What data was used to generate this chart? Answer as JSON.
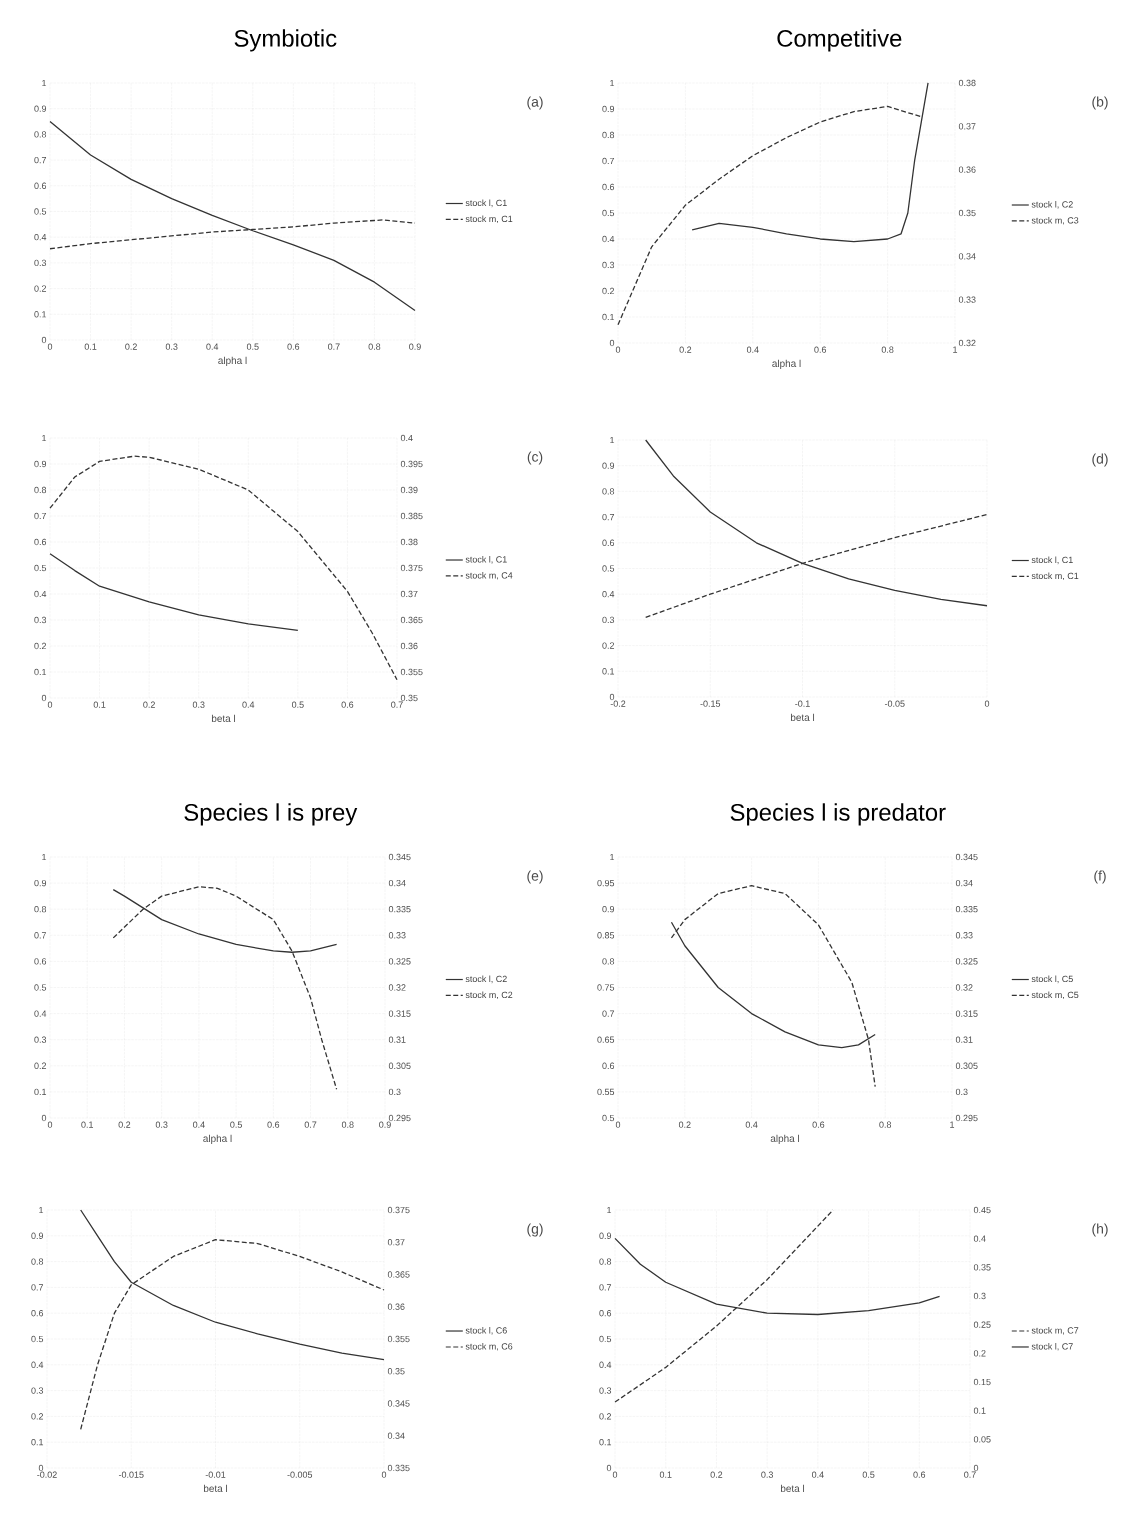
{
  "chart_data": [
    {
      "type": "line",
      "title": "Symbiotic",
      "xlabel": "alpha l",
      "annotations": [
        "(a)"
      ],
      "xlim": [
        0,
        0.9
      ],
      "xticks": [
        0,
        0.1,
        0.2,
        0.3,
        0.4,
        0.5,
        0.6,
        0.7,
        0.8,
        0.9
      ],
      "ylim": [
        0,
        1
      ],
      "yticks": [
        0,
        0.1,
        0.2,
        0.3,
        0.4,
        0.5,
        0.6,
        0.7,
        0.8,
        0.9,
        1
      ],
      "grid": true,
      "legend": "right",
      "series": [
        {
          "name": "stock l, C1",
          "color": "#333333",
          "line_style": "solid",
          "x": [
            0,
            0.1,
            0.2,
            0.3,
            0.4,
            0.5,
            0.6,
            0.7,
            0.8,
            0.9
          ],
          "values": [
            0.85,
            0.72,
            0.625,
            0.55,
            0.485,
            0.425,
            0.37,
            0.31,
            0.225,
            0.115
          ]
        },
        {
          "name": "stock m, C1",
          "color": "#333333",
          "line_style": "dashed",
          "x": [
            0,
            0.1,
            0.2,
            0.3,
            0.4,
            0.5,
            0.6,
            0.7,
            0.8,
            0.82,
            0.9
          ],
          "values": [
            0.355,
            0.375,
            0.39,
            0.405,
            0.42,
            0.43,
            0.44,
            0.455,
            0.465,
            0.467,
            0.455
          ]
        }
      ]
    },
    {
      "type": "line",
      "title": "Competitive",
      "xlabel": "alpha l",
      "annotations": [
        "(b)"
      ],
      "xlim": [
        0,
        1
      ],
      "xticks": [
        0,
        0.2,
        0.4,
        0.6,
        0.8,
        1
      ],
      "ylim": [
        0,
        1
      ],
      "yticks": [
        0,
        0.1,
        0.2,
        0.3,
        0.4,
        0.5,
        0.6,
        0.7,
        0.8,
        0.9,
        1
      ],
      "y2lim": [
        0.32,
        0.38
      ],
      "y2ticks": [
        0.32,
        0.33,
        0.34,
        0.35,
        0.36,
        0.37,
        0.38
      ],
      "grid": true,
      "legend": "right",
      "series": [
        {
          "name": "stock l, C2",
          "color": "#333333",
          "line_style": "solid",
          "x": [
            0.22,
            0.3,
            0.4,
            0.5,
            0.6,
            0.7,
            0.8,
            0.84,
            0.86,
            0.88,
            0.9,
            0.92
          ],
          "values": [
            0.435,
            0.46,
            0.445,
            0.42,
            0.4,
            0.39,
            0.4,
            0.42,
            0.5,
            0.7,
            0.85,
            1.0
          ]
        },
        {
          "name": "stock m, C3",
          "color": "#333333",
          "line_style": "dashed",
          "axis": "y2",
          "x": [
            0,
            0.05,
            0.1,
            0.2,
            0.3,
            0.4,
            0.5,
            0.6,
            0.7,
            0.8,
            0.9
          ],
          "values": [
            0.3242,
            0.3332,
            0.3422,
            0.3518,
            0.3578,
            0.3632,
            0.3674,
            0.371,
            0.3734,
            0.3746,
            0.3722
          ]
        }
      ]
    },
    {
      "type": "line",
      "xlabel": "beta l",
      "annotations": [
        "(c)"
      ],
      "xlim": [
        0,
        0.7
      ],
      "xticks": [
        0,
        0.1,
        0.2,
        0.3,
        0.4,
        0.5,
        0.6,
        0.7
      ],
      "ylim": [
        0,
        1
      ],
      "yticks": [
        0,
        0.1,
        0.2,
        0.3,
        0.4,
        0.5,
        0.6,
        0.7,
        0.8,
        0.9,
        1
      ],
      "y2lim": [
        0.35,
        0.4
      ],
      "y2ticks": [
        0.35,
        0.355,
        0.36,
        0.365,
        0.37,
        0.375,
        0.38,
        0.385,
        0.39,
        0.395,
        0.4
      ],
      "grid": true,
      "legend": "right",
      "series": [
        {
          "name": "stock l, C1",
          "color": "#333333",
          "line_style": "solid",
          "x": [
            0,
            0.05,
            0.1,
            0.2,
            0.3,
            0.4,
            0.5
          ],
          "values": [
            0.555,
            0.49,
            0.43,
            0.37,
            0.32,
            0.285,
            0.26
          ]
        },
        {
          "name": "stock m, C4",
          "color": "#333333",
          "line_style": "dashed",
          "axis": "y2",
          "x": [
            0,
            0.05,
            0.1,
            0.17,
            0.2,
            0.3,
            0.4,
            0.5,
            0.6,
            0.65,
            0.7
          ],
          "values": [
            0.3865,
            0.3925,
            0.3955,
            0.3965,
            0.3963,
            0.394,
            0.39,
            0.382,
            0.3705,
            0.3625,
            0.3535
          ]
        }
      ]
    },
    {
      "type": "line",
      "xlabel": "beta l",
      "annotations": [
        "(d)"
      ],
      "xlim": [
        -0.2,
        0
      ],
      "xticks": [
        -0.2,
        -0.15,
        -0.1,
        -0.05,
        0
      ],
      "ylim": [
        0,
        1
      ],
      "yticks": [
        0,
        0.1,
        0.2,
        0.3,
        0.4,
        0.5,
        0.6,
        0.7,
        0.8,
        0.9,
        1
      ],
      "grid": true,
      "legend": "right",
      "series": [
        {
          "name": "stock l, C1",
          "color": "#333333",
          "line_style": "solid",
          "x": [
            -0.185,
            -0.17,
            -0.15,
            -0.125,
            -0.1,
            -0.075,
            -0.05,
            -0.025,
            0
          ],
          "values": [
            1.0,
            0.86,
            0.72,
            0.6,
            0.52,
            0.46,
            0.415,
            0.38,
            0.355
          ]
        },
        {
          "name": "stock m, C1",
          "color": "#333333",
          "line_style": "dashed",
          "x": [
            -0.185,
            -0.15,
            -0.1,
            -0.05,
            0
          ],
          "values": [
            0.31,
            0.4,
            0.52,
            0.62,
            0.71
          ]
        }
      ]
    },
    {
      "type": "line",
      "title": "Species l is prey",
      "xlabel": "alpha l",
      "annotations": [
        "(e)"
      ],
      "xlim": [
        0,
        0.9
      ],
      "xticks": [
        0,
        0.1,
        0.2,
        0.3,
        0.4,
        0.5,
        0.6,
        0.7,
        0.8,
        0.9
      ],
      "ylim": [
        0,
        1
      ],
      "yticks": [
        0,
        0.1,
        0.2,
        0.3,
        0.4,
        0.5,
        0.6,
        0.7,
        0.8,
        0.9,
        1
      ],
      "y2lim": [
        0.295,
        0.345
      ],
      "y2ticks": [
        0.295,
        0.3,
        0.305,
        0.31,
        0.315,
        0.32,
        0.325,
        0.33,
        0.335,
        0.34,
        0.345
      ],
      "grid": true,
      "legend": "right",
      "series": [
        {
          "name": "stock l, C2",
          "color": "#333333",
          "line_style": "solid",
          "x": [
            0.17,
            0.2,
            0.3,
            0.4,
            0.5,
            0.6,
            0.65,
            0.7,
            0.77
          ],
          "values": [
            0.875,
            0.85,
            0.76,
            0.705,
            0.665,
            0.64,
            0.635,
            0.64,
            0.665
          ]
        },
        {
          "name": "stock m, C2",
          "color": "#333333",
          "line_style": "dashed",
          "axis": "y2",
          "x": [
            0.17,
            0.25,
            0.3,
            0.4,
            0.45,
            0.5,
            0.6,
            0.65,
            0.7,
            0.73,
            0.77
          ],
          "values": [
            0.3295,
            0.335,
            0.3375,
            0.3393,
            0.339,
            0.3375,
            0.333,
            0.327,
            0.318,
            0.31,
            0.3005
          ]
        }
      ]
    },
    {
      "type": "line",
      "title": "Species l is predator",
      "xlabel": "alpha l",
      "annotations": [
        "(f)"
      ],
      "xlim": [
        0,
        1
      ],
      "xticks": [
        0,
        0.2,
        0.4,
        0.6,
        0.8,
        1
      ],
      "ylim": [
        0.5,
        1
      ],
      "yticks": [
        0.5,
        0.55,
        0.6,
        0.65,
        0.7,
        0.75,
        0.8,
        0.85,
        0.9,
        0.95,
        1
      ],
      "y2lim": [
        0.295,
        0.345
      ],
      "y2ticks": [
        0.295,
        0.3,
        0.305,
        0.31,
        0.315,
        0.32,
        0.325,
        0.33,
        0.335,
        0.34,
        0.345
      ],
      "grid": true,
      "legend": "right",
      "series": [
        {
          "name": "stock l, C5",
          "color": "#333333",
          "line_style": "solid",
          "x": [
            0.16,
            0.2,
            0.3,
            0.4,
            0.5,
            0.6,
            0.67,
            0.72,
            0.77
          ],
          "values": [
            0.875,
            0.83,
            0.75,
            0.7,
            0.665,
            0.64,
            0.635,
            0.64,
            0.66
          ]
        },
        {
          "name": "stock m, C5",
          "color": "#333333",
          "line_style": "dashed",
          "axis": "y2",
          "x": [
            0.16,
            0.2,
            0.3,
            0.4,
            0.5,
            0.6,
            0.7,
            0.75,
            0.77
          ],
          "values": [
            0.3295,
            0.333,
            0.338,
            0.3395,
            0.338,
            0.332,
            0.321,
            0.31,
            0.301
          ]
        }
      ]
    },
    {
      "type": "line",
      "xlabel": "beta l",
      "annotations": [
        "(g)"
      ],
      "xlim": [
        -0.02,
        0
      ],
      "xticks": [
        -0.02,
        -0.015,
        -0.01,
        -0.005,
        0
      ],
      "ylim": [
        0,
        1
      ],
      "yticks": [
        0,
        0.1,
        0.2,
        0.3,
        0.4,
        0.5,
        0.6,
        0.7,
        0.8,
        0.9,
        1
      ],
      "y2lim": [
        0.335,
        0.375
      ],
      "y2ticks": [
        0.335,
        0.34,
        0.345,
        0.35,
        0.355,
        0.36,
        0.365,
        0.37,
        0.375
      ],
      "grid": true,
      "legend": "right",
      "series": [
        {
          "name": "stock l, C6",
          "color": "#333333",
          "line_style": "solid",
          "x": [
            -0.018,
            -0.017,
            -0.016,
            -0.015,
            -0.0125,
            -0.01,
            -0.0075,
            -0.005,
            -0.0025,
            0
          ],
          "values": [
            1.0,
            0.9,
            0.8,
            0.72,
            0.63,
            0.565,
            0.52,
            0.48,
            0.445,
            0.42
          ]
        },
        {
          "name": "stock m, C6",
          "color": "#333333",
          "line_style": "dashed",
          "axis": "y2",
          "x": [
            -0.018,
            -0.017,
            -0.016,
            -0.015,
            -0.0125,
            -0.01,
            -0.0075,
            -0.005,
            -0.0025,
            0
          ],
          "values": [
            0.341,
            0.351,
            0.359,
            0.3634,
            0.3678,
            0.3704,
            0.3698,
            0.3678,
            0.3654,
            0.3626
          ]
        }
      ]
    },
    {
      "type": "line",
      "xlabel": "beta l",
      "annotations": [
        "(h)"
      ],
      "xlim": [
        0,
        0.7
      ],
      "xticks": [
        0,
        0.1,
        0.2,
        0.3,
        0.4,
        0.5,
        0.6,
        0.7
      ],
      "ylim": [
        0,
        1
      ],
      "yticks": [
        0,
        0.1,
        0.2,
        0.3,
        0.4,
        0.5,
        0.6,
        0.7,
        0.8,
        0.9,
        1
      ],
      "y2lim": [
        0,
        0.45
      ],
      "y2ticks": [
        0,
        0.05,
        0.1,
        0.15,
        0.2,
        0.25,
        0.3,
        0.35,
        0.4,
        0.45
      ],
      "grid": true,
      "legend": "right",
      "series": [
        {
          "name": "stock m, C7",
          "color": "#333333",
          "line_style": "dashed",
          "axis": "y2",
          "x": [
            0,
            0.1,
            0.2,
            0.3,
            0.43
          ],
          "values": [
            0.115,
            0.1755,
            0.2475,
            0.3285,
            0.45
          ]
        },
        {
          "name": "stock l, C7",
          "color": "#333333",
          "line_style": "solid",
          "x": [
            0,
            0.05,
            0.1,
            0.2,
            0.3,
            0.4,
            0.5,
            0.6,
            0.64
          ],
          "values": [
            0.89,
            0.79,
            0.72,
            0.635,
            0.6,
            0.595,
            0.61,
            0.64,
            0.665
          ]
        }
      ]
    }
  ]
}
